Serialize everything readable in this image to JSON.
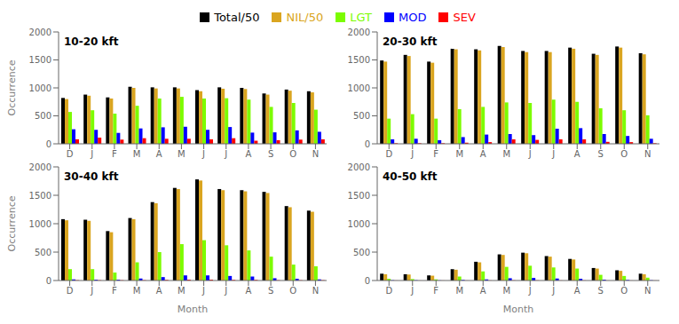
{
  "chart_data": [
    {
      "type": "bar",
      "title": "10-20 kft",
      "categories": [
        "D",
        "J",
        "F",
        "M",
        "A",
        "M",
        "J",
        "J",
        "A",
        "S",
        "O",
        "N"
      ],
      "series": [
        {
          "name": "Total/50",
          "color": "#000000",
          "values": [
            820,
            880,
            830,
            1020,
            1010,
            1010,
            960,
            1010,
            1000,
            900,
            970,
            940
          ]
        },
        {
          "name": "NIL/50",
          "color": "#DAA520",
          "values": [
            800,
            860,
            810,
            1000,
            990,
            990,
            940,
            985,
            980,
            880,
            950,
            920
          ]
        },
        {
          "name": "LGT",
          "color": "#7CFC00",
          "values": [
            570,
            600,
            540,
            680,
            810,
            840,
            810,
            815,
            790,
            660,
            730,
            610
          ]
        },
        {
          "name": "MOD",
          "color": "#0000FF",
          "values": [
            260,
            250,
            195,
            275,
            295,
            305,
            250,
            300,
            200,
            205,
            240,
            215
          ]
        },
        {
          "name": "SEV",
          "color": "#FF0000",
          "values": [
            80,
            110,
            75,
            100,
            90,
            90,
            80,
            100,
            55,
            65,
            75,
            80
          ]
        }
      ],
      "ylim": [
        0,
        2000
      ],
      "yticks": [
        0,
        500,
        1000,
        1500,
        2000
      ],
      "grid": false,
      "legend": "top",
      "ylabel": "Occurrence"
    },
    {
      "type": "bar",
      "title": "20-30 kft",
      "categories": [
        "D",
        "J",
        "F",
        "M",
        "A",
        "M",
        "J",
        "J",
        "A",
        "S",
        "O",
        "N"
      ],
      "series": [
        {
          "name": "Total/50",
          "color": "#000000",
          "values": [
            1490,
            1590,
            1470,
            1700,
            1690,
            1750,
            1660,
            1660,
            1720,
            1610,
            1740,
            1620
          ]
        },
        {
          "name": "NIL/50",
          "color": "#DAA520",
          "values": [
            1470,
            1570,
            1450,
            1690,
            1670,
            1730,
            1640,
            1640,
            1700,
            1590,
            1720,
            1600
          ]
        },
        {
          "name": "LGT",
          "color": "#7CFC00",
          "values": [
            450,
            530,
            450,
            620,
            660,
            740,
            730,
            790,
            750,
            635,
            600,
            510
          ]
        },
        {
          "name": "MOD",
          "color": "#0000FF",
          "values": [
            80,
            90,
            65,
            120,
            165,
            175,
            155,
            270,
            280,
            175,
            140,
            90
          ]
        },
        {
          "name": "SEV",
          "color": "#FF0000",
          "values": [
            10,
            10,
            10,
            20,
            30,
            80,
            70,
            80,
            80,
            35,
            30,
            10
          ]
        }
      ],
      "ylim": [
        0,
        2000
      ],
      "yticks": [
        0,
        500,
        1000,
        1500,
        2000
      ],
      "grid": false,
      "legend": "top"
    },
    {
      "type": "bar",
      "title": "30-40 kft",
      "categories": [
        "D",
        "J",
        "F",
        "M",
        "A",
        "M",
        "J",
        "J",
        "A",
        "S",
        "O",
        "N"
      ],
      "series": [
        {
          "name": "Total/50",
          "color": "#000000",
          "values": [
            1080,
            1070,
            870,
            1100,
            1380,
            1630,
            1780,
            1610,
            1590,
            1560,
            1310,
            1230
          ]
        },
        {
          "name": "NIL/50",
          "color": "#DAA520",
          "values": [
            1060,
            1050,
            850,
            1080,
            1360,
            1610,
            1760,
            1590,
            1570,
            1540,
            1290,
            1210
          ]
        },
        {
          "name": "LGT",
          "color": "#7CFC00",
          "values": [
            200,
            200,
            140,
            320,
            500,
            640,
            710,
            620,
            530,
            420,
            280,
            250
          ]
        },
        {
          "name": "MOD",
          "color": "#0000FF",
          "values": [
            20,
            15,
            15,
            35,
            60,
            90,
            90,
            80,
            70,
            40,
            30,
            20
          ]
        },
        {
          "name": "SEV",
          "color": "#FF0000",
          "values": [
            5,
            5,
            5,
            5,
            10,
            15,
            15,
            10,
            10,
            5,
            5,
            5
          ]
        }
      ],
      "ylim": [
        0,
        2000
      ],
      "yticks": [
        0,
        500,
        1000,
        1500,
        2000
      ],
      "grid": false,
      "legend": "top",
      "ylabel": "Occurrence",
      "xlabel": "Month"
    },
    {
      "type": "bar",
      "title": "40-50 kft",
      "categories": [
        "D",
        "J",
        "F",
        "M",
        "A",
        "M",
        "J",
        "J",
        "A",
        "S",
        "O",
        "N"
      ],
      "series": [
        {
          "name": "Total/50",
          "color": "#000000",
          "values": [
            120,
            110,
            90,
            200,
            330,
            460,
            490,
            430,
            380,
            220,
            180,
            120
          ]
        },
        {
          "name": "NIL/50",
          "color": "#DAA520",
          "values": [
            110,
            105,
            85,
            190,
            320,
            450,
            480,
            420,
            370,
            210,
            170,
            110
          ]
        },
        {
          "name": "LGT",
          "color": "#7CFC00",
          "values": [
            30,
            25,
            20,
            70,
            160,
            240,
            260,
            230,
            210,
            100,
            80,
            50
          ]
        },
        {
          "name": "MOD",
          "color": "#0000FF",
          "values": [
            5,
            5,
            3,
            10,
            20,
            40,
            45,
            35,
            30,
            15,
            10,
            5
          ]
        },
        {
          "name": "SEV",
          "color": "#FF0000",
          "values": [
            1,
            1,
            1,
            1,
            2,
            3,
            3,
            2,
            2,
            1,
            1,
            1
          ]
        }
      ],
      "ylim": [
        0,
        2000
      ],
      "yticks": [
        0,
        500,
        1000,
        1500,
        2000
      ],
      "grid": false,
      "legend": "top",
      "xlabel": "Month"
    }
  ]
}
